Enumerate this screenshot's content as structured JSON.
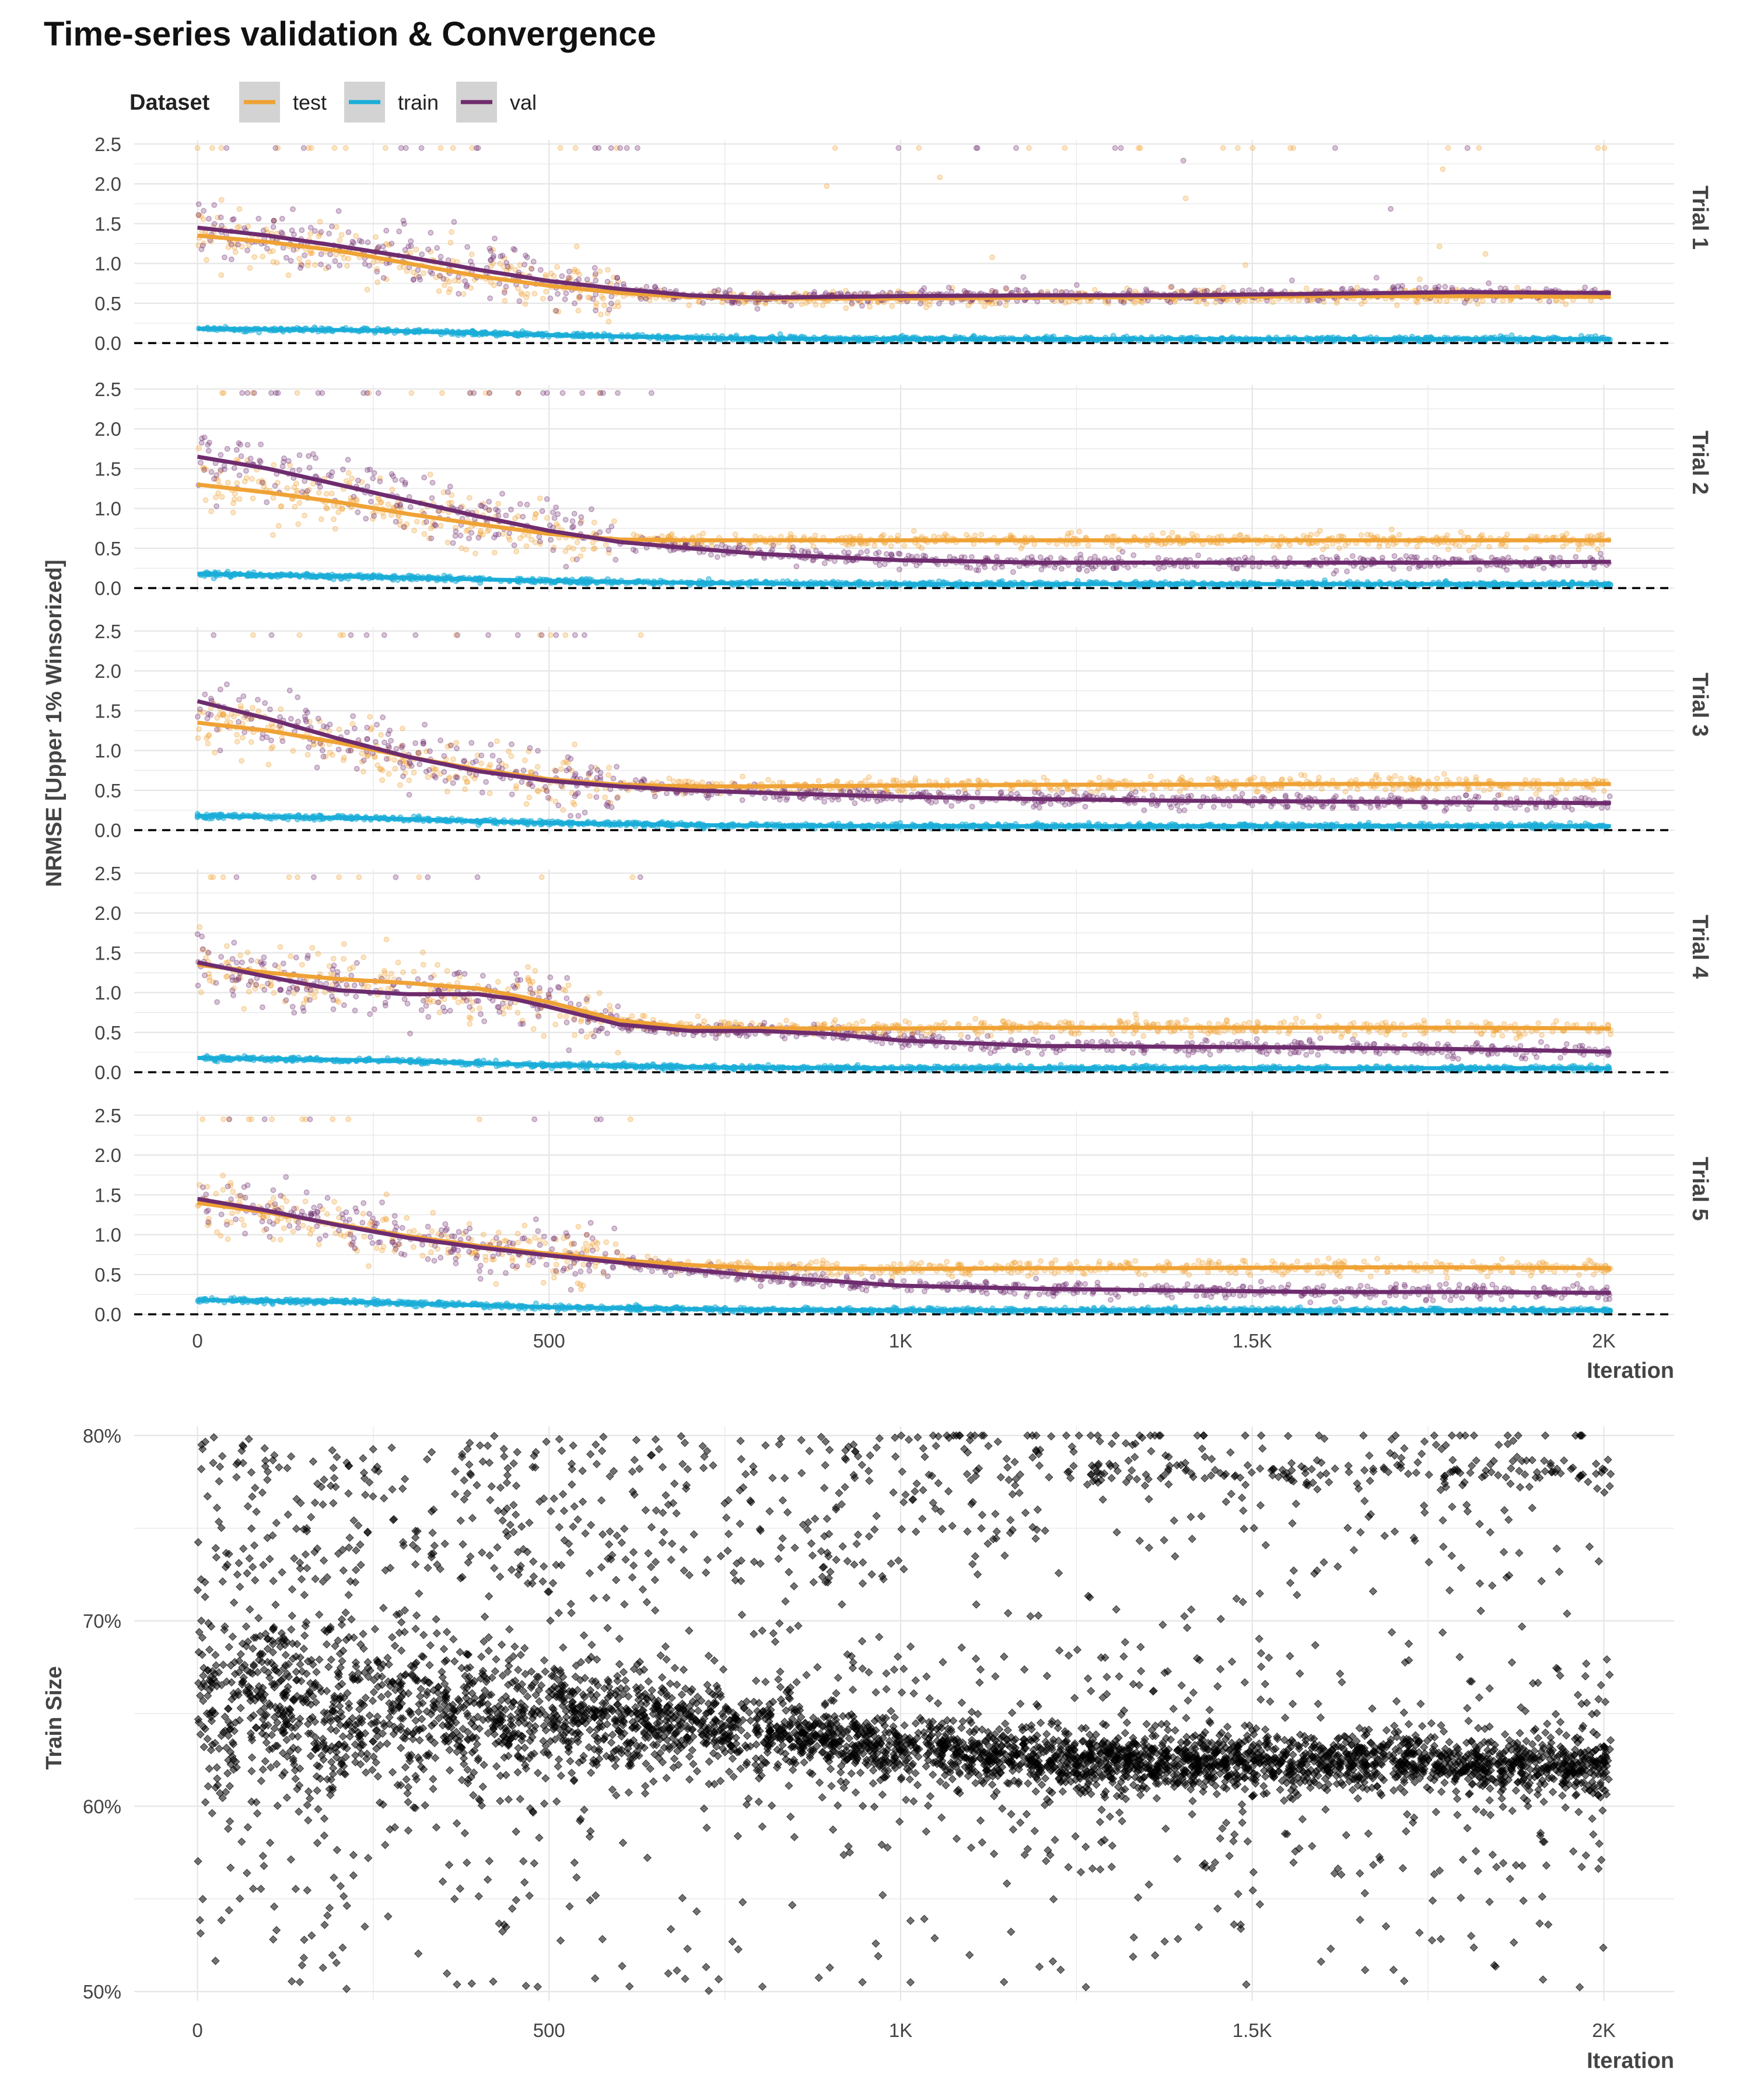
{
  "colors": {
    "test": "#EFA235",
    "train": "#1AADD8",
    "val": "#6E2C6E",
    "train_size_points": "#000000",
    "grid": "#E6E6E6",
    "zero_line": "#000000",
    "legend_key_bg": "#D3D3D3"
  },
  "chart_data": [
    {
      "type": "scatter",
      "title": "Time-series validation & Convergence",
      "xlabel": "Iteration",
      "ylabel": "NRMSE [Upper 1% Winsorized]",
      "xlim": [
        -90,
        2100
      ],
      "ylim": [
        -0.05,
        2.55
      ],
      "x_ticks": [
        0,
        500,
        1000,
        1500,
        2000
      ],
      "x_tick_labels": [
        "0",
        "500",
        "1K",
        "1.5K",
        "2K"
      ],
      "y_ticks": [
        0,
        0.5,
        1,
        1.5,
        2,
        2.5
      ],
      "y_tick_labels": [
        "0.0",
        "0.5",
        "1.0",
        "1.5",
        "2.0",
        "2.5"
      ],
      "reference_line": {
        "y": 0,
        "style": "dashed"
      },
      "legend": {
        "title": "Dataset",
        "position": "top-left",
        "entries": [
          "test",
          "train",
          "val"
        ]
      },
      "grid": true,
      "facets": [
        {
          "label": "Trial 1",
          "smooth": {
            "test": {
              "x": [
                0,
                100,
                200,
                300,
                400,
                500,
                600,
                700,
                800,
                1000,
                1200,
                1400,
                1600,
                1800,
                2000
              ],
              "y": [
                1.35,
                1.27,
                1.16,
                1.0,
                0.84,
                0.72,
                0.63,
                0.58,
                0.56,
                0.56,
                0.57,
                0.58,
                0.59,
                0.59,
                0.58
              ]
            },
            "train": {
              "x": [
                0,
                250,
                500,
                750,
                1000,
                1500,
                2000
              ],
              "y": [
                0.18,
                0.16,
                0.1,
                0.06,
                0.05,
                0.05,
                0.05
              ]
            },
            "val": {
              "x": [
                0,
                100,
                200,
                300,
                400,
                500,
                600,
                700,
                800,
                1000,
                1200,
                1400,
                1600,
                1800,
                2000
              ],
              "y": [
                1.45,
                1.35,
                1.22,
                1.08,
                0.92,
                0.78,
                0.68,
                0.6,
                0.57,
                0.59,
                0.6,
                0.6,
                0.62,
                0.64,
                0.63
              ]
            }
          }
        },
        {
          "label": "Trial 2",
          "smooth": {
            "test": {
              "x": [
                0,
                100,
                200,
                300,
                400,
                500,
                600,
                700,
                800,
                1000,
                1200,
                1400,
                1600,
                1800,
                2000
              ],
              "y": [
                1.3,
                1.2,
                1.08,
                0.93,
                0.8,
                0.68,
                0.61,
                0.6,
                0.6,
                0.6,
                0.6,
                0.6,
                0.6,
                0.6,
                0.6
              ]
            },
            "train": {
              "x": [
                0,
                250,
                500,
                750,
                1000,
                1500,
                2000
              ],
              "y": [
                0.18,
                0.14,
                0.09,
                0.06,
                0.05,
                0.05,
                0.05
              ]
            },
            "val": {
              "x": [
                0,
                100,
                200,
                300,
                400,
                500,
                600,
                700,
                800,
                1000,
                1200,
                1400,
                1600,
                1800,
                2000
              ],
              "y": [
                1.65,
                1.5,
                1.3,
                1.1,
                0.9,
                0.72,
                0.58,
                0.5,
                0.43,
                0.35,
                0.32,
                0.32,
                0.32,
                0.32,
                0.33
              ]
            }
          }
        },
        {
          "label": "Trial 3",
          "smooth": {
            "test": {
              "x": [
                0,
                100,
                200,
                300,
                400,
                500,
                600,
                700,
                800,
                1000,
                1200,
                1400,
                1600,
                1800,
                2000
              ],
              "y": [
                1.35,
                1.25,
                1.1,
                0.92,
                0.76,
                0.64,
                0.57,
                0.55,
                0.55,
                0.56,
                0.57,
                0.57,
                0.58,
                0.58,
                0.58
              ]
            },
            "train": {
              "x": [
                0,
                250,
                500,
                750,
                1000,
                1500,
                2000
              ],
              "y": [
                0.18,
                0.15,
                0.09,
                0.06,
                0.05,
                0.05,
                0.05
              ]
            },
            "val": {
              "x": [
                0,
                100,
                200,
                300,
                400,
                500,
                600,
                700,
                800,
                1000,
                1200,
                1400,
                1600,
                1800,
                2000
              ],
              "y": [
                1.62,
                1.4,
                1.15,
                0.92,
                0.74,
                0.62,
                0.55,
                0.5,
                0.47,
                0.42,
                0.39,
                0.37,
                0.36,
                0.35,
                0.34
              ]
            }
          }
        },
        {
          "label": "Trial 4",
          "smooth": {
            "test": {
              "x": [
                0,
                100,
                200,
                300,
                400,
                500,
                600,
                700,
                800,
                1000,
                1200,
                1400,
                1600,
                1800,
                2000
              ],
              "y": [
                1.35,
                1.25,
                1.17,
                1.12,
                1.05,
                0.88,
                0.65,
                0.56,
                0.55,
                0.55,
                0.56,
                0.56,
                0.56,
                0.56,
                0.55
              ]
            },
            "train": {
              "x": [
                0,
                250,
                500,
                750,
                1000,
                1500,
                2000
              ],
              "y": [
                0.18,
                0.15,
                0.09,
                0.06,
                0.05,
                0.05,
                0.05
              ]
            },
            "val": {
              "x": [
                0,
                100,
                200,
                300,
                400,
                450,
                500,
                600,
                700,
                800,
                900,
                1000,
                1200,
                1400,
                1600,
                1800,
                2000
              ],
              "y": [
                1.38,
                1.2,
                1.03,
                0.98,
                0.98,
                0.92,
                0.82,
                0.6,
                0.52,
                0.52,
                0.48,
                0.4,
                0.33,
                0.32,
                0.31,
                0.29,
                0.26
              ]
            }
          }
        },
        {
          "label": "Trial 5",
          "smooth": {
            "test": {
              "x": [
                0,
                100,
                200,
                300,
                400,
                500,
                600,
                700,
                800,
                1000,
                1200,
                1400,
                1600,
                1800,
                2000
              ],
              "y": [
                1.4,
                1.28,
                1.13,
                0.98,
                0.86,
                0.76,
                0.68,
                0.62,
                0.58,
                0.57,
                0.58,
                0.58,
                0.59,
                0.59,
                0.58
              ]
            },
            "train": {
              "x": [
                0,
                250,
                500,
                750,
                1000,
                1500,
                2000
              ],
              "y": [
                0.18,
                0.15,
                0.09,
                0.06,
                0.05,
                0.05,
                0.05
              ]
            },
            "val": {
              "x": [
                0,
                100,
                200,
                300,
                400,
                500,
                600,
                700,
                800,
                1000,
                1200,
                1400,
                1600,
                1800,
                2000
              ],
              "y": [
                1.45,
                1.3,
                1.12,
                0.96,
                0.84,
                0.74,
                0.65,
                0.56,
                0.48,
                0.36,
                0.32,
                0.3,
                0.28,
                0.28,
                0.27
              ]
            }
          }
        }
      ]
    },
    {
      "type": "scatter",
      "xlabel": "Iteration",
      "ylabel": "Train Size",
      "xlim": [
        -90,
        2100
      ],
      "ylim": [
        0.495,
        0.805
      ],
      "x_ticks": [
        0,
        500,
        1000,
        1500,
        2000
      ],
      "x_tick_labels": [
        "0",
        "500",
        "1K",
        "1.5K",
        "2K"
      ],
      "y_ticks": [
        0.5,
        0.6,
        0.7,
        0.8
      ],
      "y_tick_labels": [
        "50%",
        "60%",
        "70%",
        "80%"
      ],
      "marker": "diamond",
      "grid": true,
      "trend": {
        "x": [
          0,
          250,
          500,
          750,
          1000,
          1250,
          1500,
          1750,
          2000
        ],
        "y": [
          0.655,
          0.652,
          0.648,
          0.642,
          0.632,
          0.625,
          0.623,
          0.623,
          0.622
        ]
      }
    }
  ]
}
